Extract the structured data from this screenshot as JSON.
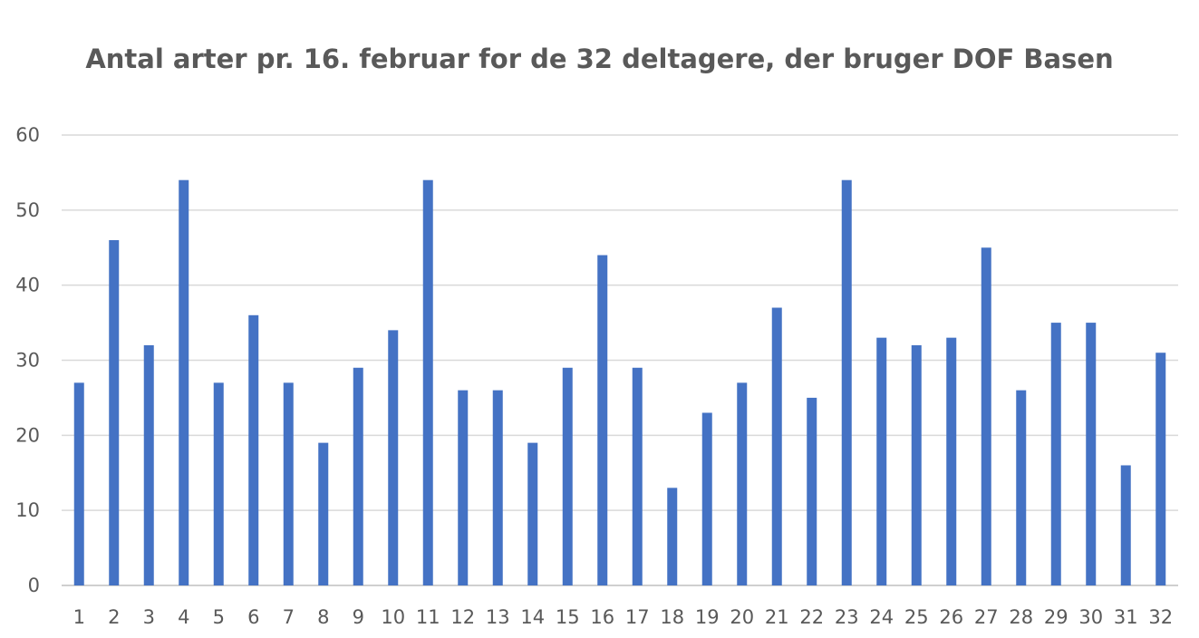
{
  "chart_data": {
    "type": "bar",
    "title": "Antal arter pr. 16. februar for de 32 deltagere, der bruger DOF Basen",
    "xlabel": "",
    "ylabel": "",
    "categories": [
      "1",
      "2",
      "3",
      "4",
      "5",
      "6",
      "7",
      "8",
      "9",
      "10",
      "11",
      "12",
      "13",
      "14",
      "15",
      "16",
      "17",
      "18",
      "19",
      "20",
      "21",
      "22",
      "23",
      "24",
      "25",
      "26",
      "27",
      "28",
      "29",
      "30",
      "31",
      "32"
    ],
    "values": [
      27,
      46,
      32,
      54,
      27,
      36,
      27,
      19,
      29,
      34,
      54,
      26,
      26,
      19,
      29,
      44,
      29,
      13,
      23,
      27,
      37,
      25,
      54,
      33,
      32,
      33,
      45,
      26,
      35,
      35,
      16,
      31
    ],
    "ylim": [
      0,
      60
    ],
    "yticks": [
      0,
      10,
      20,
      30,
      40,
      50,
      60
    ],
    "grid": true,
    "legend": "none",
    "bar_color": "#4472c4",
    "grid_color": "#d9d9d9",
    "text_color": "#595959"
  }
}
